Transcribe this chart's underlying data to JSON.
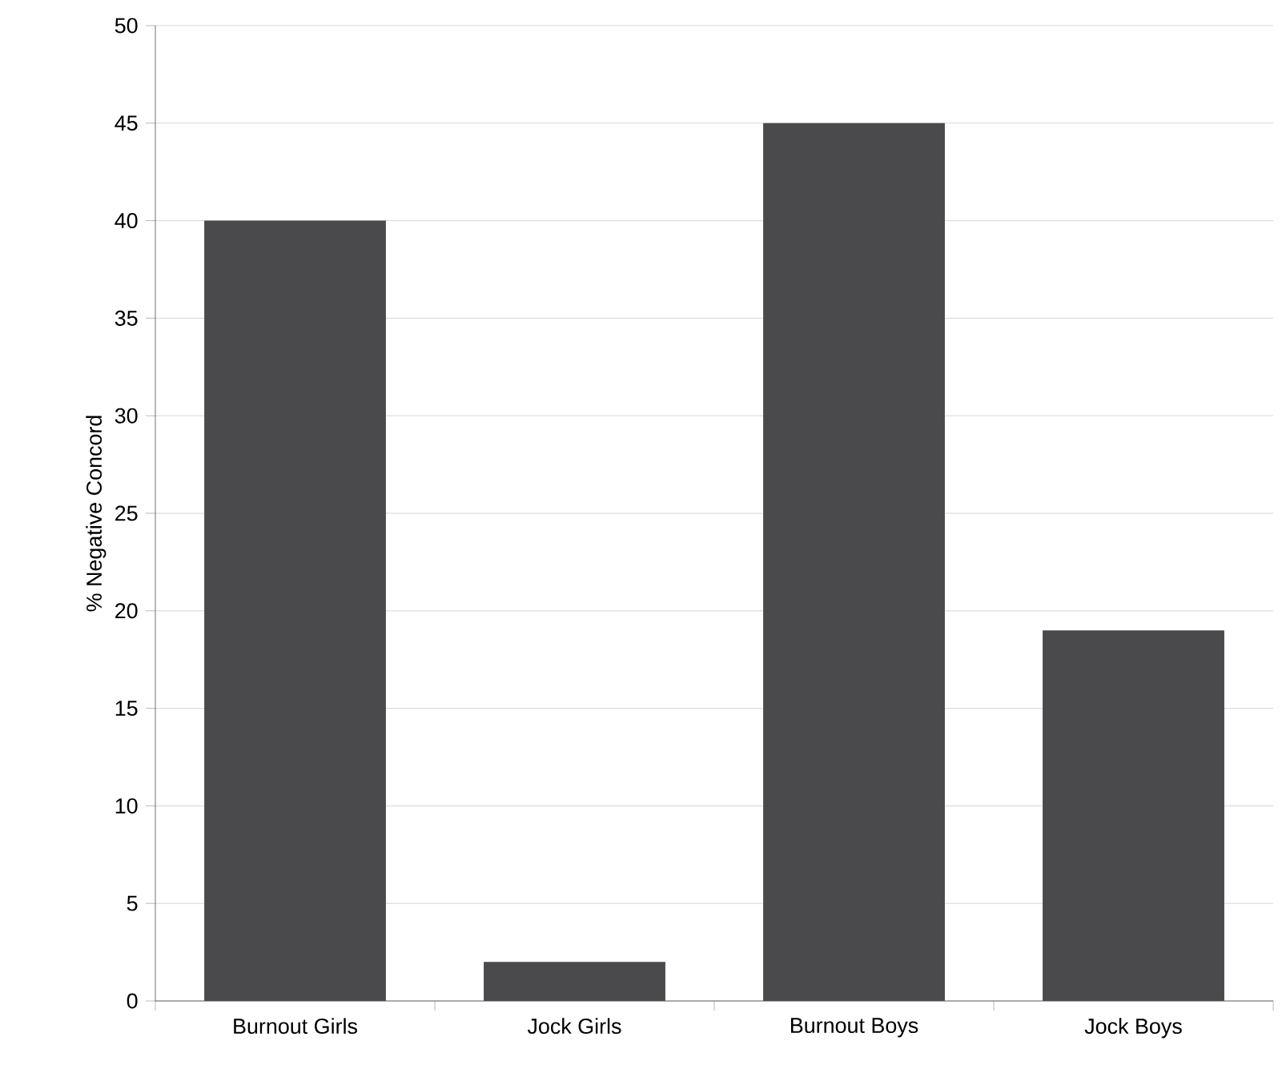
{
  "chart_data": {
    "type": "bar",
    "ylabel": "% Negative Concord",
    "categories": [
      "Burnout Girls",
      "Jock Girls",
      "Burnout Boys",
      "Jock Boys"
    ],
    "values": [
      40,
      2,
      45,
      19
    ],
    "color": "#4a4a4c",
    "ylim": [
      0,
      50
    ],
    "yticks": [
      0,
      5,
      10,
      15,
      20,
      25,
      30,
      35,
      40,
      45,
      50
    ],
    "grid": "y"
  }
}
